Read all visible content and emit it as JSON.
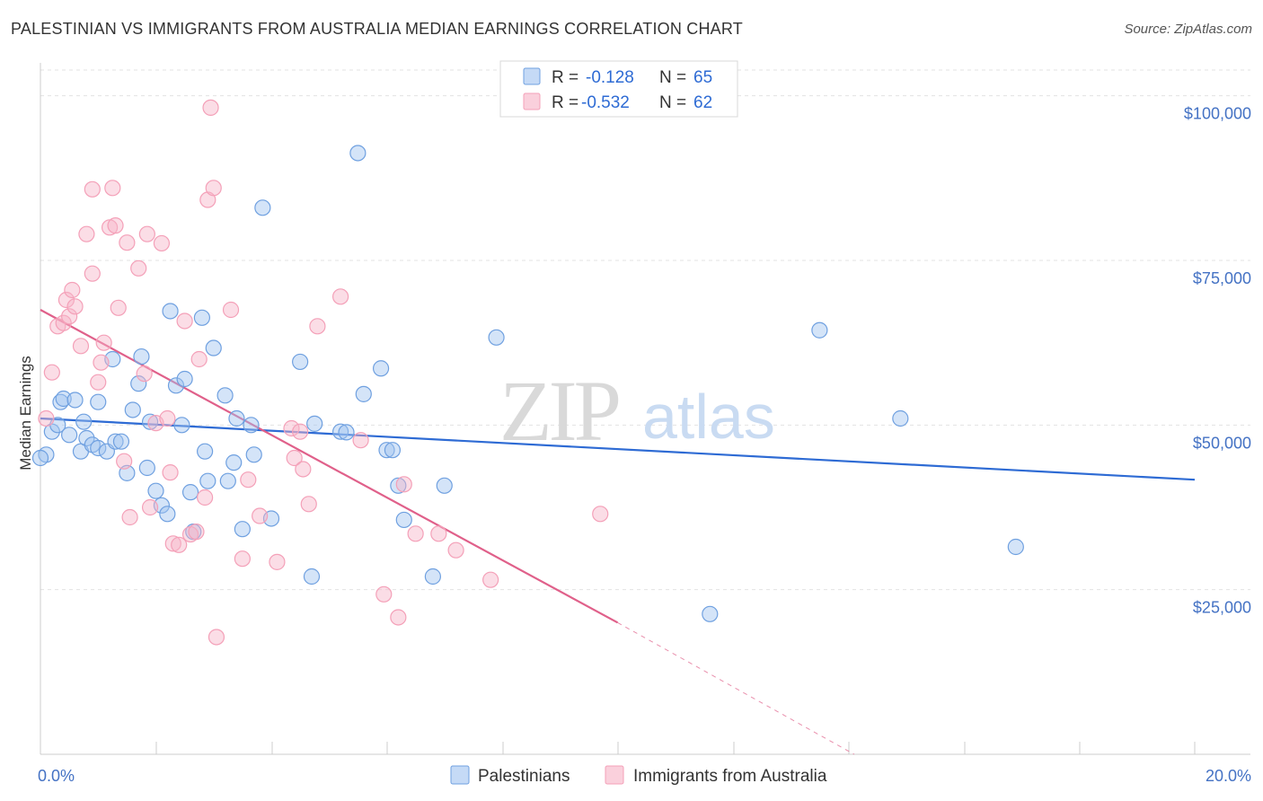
{
  "title": "PALESTINIAN VS IMMIGRANTS FROM AUSTRALIA MEDIAN EARNINGS CORRELATION CHART",
  "source": "Source: ZipAtlas.com",
  "watermark": {
    "zip": "ZIP",
    "atlas": "atlas"
  },
  "legend": {
    "r_label": "R =",
    "n_label": "N =",
    "rows": [
      {
        "r": "-0.128",
        "n": "65"
      },
      {
        "r": "-0.532",
        "n": "62"
      }
    ]
  },
  "bottom_legend": [
    "Palestinians",
    "Immigrants from Australia"
  ],
  "chart_data": {
    "type": "scatter",
    "title": "PALESTINIAN VS IMMIGRANTS FROM AUSTRALIA MEDIAN EARNINGS CORRELATION CHART",
    "xlabel": "",
    "ylabel": "Median Earnings",
    "xlim": [
      0,
      20
    ],
    "ylim": [
      0,
      105000
    ],
    "x_tick_labels": [
      "0.0%",
      "20.0%"
    ],
    "y_ticks": [
      25000,
      50000,
      75000,
      100000
    ],
    "y_tick_labels": [
      "$25,000",
      "$50,000",
      "$75,000",
      "$100,000"
    ],
    "grid": true,
    "legend_position": "top-center",
    "colors": {
      "palestinians": "#6fa0e0",
      "australia": "#f4a0b8",
      "line_blue": "#2e6bd4",
      "line_pink": "#e0608a"
    },
    "series": [
      {
        "name": "Palestinians",
        "r": -0.128,
        "n": 65,
        "trend": {
          "x0": 0.0,
          "y0": 51000,
          "x1": 20.0,
          "y1": 41700
        },
        "points": [
          [
            0.1,
            45500
          ],
          [
            0.2,
            49000
          ],
          [
            0.3,
            50000
          ],
          [
            0.35,
            53500
          ],
          [
            0.4,
            54000
          ],
          [
            0.5,
            48500
          ],
          [
            0.6,
            53800
          ],
          [
            0.7,
            46000
          ],
          [
            0.75,
            50500
          ],
          [
            0.8,
            48000
          ],
          [
            0.9,
            47000
          ],
          [
            1.0,
            53500
          ],
          [
            1.0,
            46500
          ],
          [
            1.15,
            46000
          ],
          [
            1.25,
            60000
          ],
          [
            1.3,
            47500
          ],
          [
            1.4,
            47500
          ],
          [
            1.5,
            42700
          ],
          [
            1.6,
            52300
          ],
          [
            1.7,
            56300
          ],
          [
            1.75,
            60400
          ],
          [
            1.85,
            43500
          ],
          [
            1.9,
            50500
          ],
          [
            2.0,
            40000
          ],
          [
            2.1,
            37800
          ],
          [
            2.2,
            36500
          ],
          [
            2.25,
            67300
          ],
          [
            2.35,
            56000
          ],
          [
            2.45,
            50000
          ],
          [
            2.5,
            57000
          ],
          [
            2.6,
            39800
          ],
          [
            2.65,
            33800
          ],
          [
            2.8,
            66300
          ],
          [
            2.85,
            46000
          ],
          [
            2.9,
            41500
          ],
          [
            3.0,
            61700
          ],
          [
            3.2,
            54500
          ],
          [
            3.25,
            41500
          ],
          [
            3.35,
            44300
          ],
          [
            3.4,
            51000
          ],
          [
            3.5,
            34200
          ],
          [
            3.65,
            50000
          ],
          [
            3.7,
            45500
          ],
          [
            3.85,
            83000
          ],
          [
            4.0,
            35800
          ],
          [
            4.5,
            59600
          ],
          [
            4.7,
            27000
          ],
          [
            4.75,
            50200
          ],
          [
            5.2,
            49000
          ],
          [
            5.3,
            48900
          ],
          [
            5.5,
            91300
          ],
          [
            5.6,
            54700
          ],
          [
            5.9,
            58600
          ],
          [
            6.0,
            46200
          ],
          [
            6.1,
            46200
          ],
          [
            6.2,
            40800
          ],
          [
            6.3,
            35600
          ],
          [
            6.8,
            27000
          ],
          [
            7.0,
            40800
          ],
          [
            7.9,
            63300
          ],
          [
            11.6,
            21300
          ],
          [
            13.5,
            64400
          ],
          [
            14.9,
            51000
          ],
          [
            16.9,
            31500
          ],
          [
            0.0,
            45000
          ]
        ]
      },
      {
        "name": "Immigrants from Australia",
        "r": -0.532,
        "n": 62,
        "trend": {
          "x0": 0.0,
          "y0": 67500,
          "x1": 10.0,
          "y1": 20000,
          "dash_to": {
            "x": 14.1,
            "y": 0
          }
        },
        "points": [
          [
            0.1,
            51000
          ],
          [
            0.2,
            58000
          ],
          [
            0.3,
            65000
          ],
          [
            0.4,
            65500
          ],
          [
            0.45,
            69000
          ],
          [
            0.5,
            66500
          ],
          [
            0.55,
            70500
          ],
          [
            0.6,
            68000
          ],
          [
            0.7,
            62000
          ],
          [
            0.8,
            79000
          ],
          [
            0.9,
            73000
          ],
          [
            0.9,
            85800
          ],
          [
            1.0,
            56500
          ],
          [
            1.05,
            59500
          ],
          [
            1.1,
            62500
          ],
          [
            1.2,
            80000
          ],
          [
            1.25,
            86000
          ],
          [
            1.3,
            80300
          ],
          [
            1.35,
            67800
          ],
          [
            1.45,
            44500
          ],
          [
            1.5,
            77700
          ],
          [
            1.55,
            36000
          ],
          [
            1.7,
            73800
          ],
          [
            1.8,
            57800
          ],
          [
            1.85,
            79000
          ],
          [
            1.9,
            37500
          ],
          [
            2.0,
            50300
          ],
          [
            2.1,
            77600
          ],
          [
            2.2,
            51000
          ],
          [
            2.25,
            42800
          ],
          [
            2.3,
            32000
          ],
          [
            2.4,
            31800
          ],
          [
            2.5,
            65800
          ],
          [
            2.6,
            33400
          ],
          [
            2.7,
            33800
          ],
          [
            2.75,
            60000
          ],
          [
            2.85,
            39000
          ],
          [
            2.9,
            84200
          ],
          [
            2.95,
            98200
          ],
          [
            3.0,
            86000
          ],
          [
            3.05,
            17800
          ],
          [
            3.3,
            67500
          ],
          [
            3.5,
            29700
          ],
          [
            3.6,
            41700
          ],
          [
            3.8,
            36200
          ],
          [
            4.1,
            29200
          ],
          [
            4.35,
            49500
          ],
          [
            4.4,
            45000
          ],
          [
            4.5,
            49000
          ],
          [
            4.55,
            43300
          ],
          [
            4.65,
            38000
          ],
          [
            4.8,
            65000
          ],
          [
            5.2,
            69500
          ],
          [
            5.55,
            47700
          ],
          [
            5.95,
            24300
          ],
          [
            6.2,
            20800
          ],
          [
            6.3,
            41000
          ],
          [
            6.5,
            33500
          ],
          [
            6.9,
            33500
          ],
          [
            7.2,
            31000
          ],
          [
            7.8,
            26500
          ],
          [
            9.7,
            36500
          ]
        ]
      }
    ]
  }
}
